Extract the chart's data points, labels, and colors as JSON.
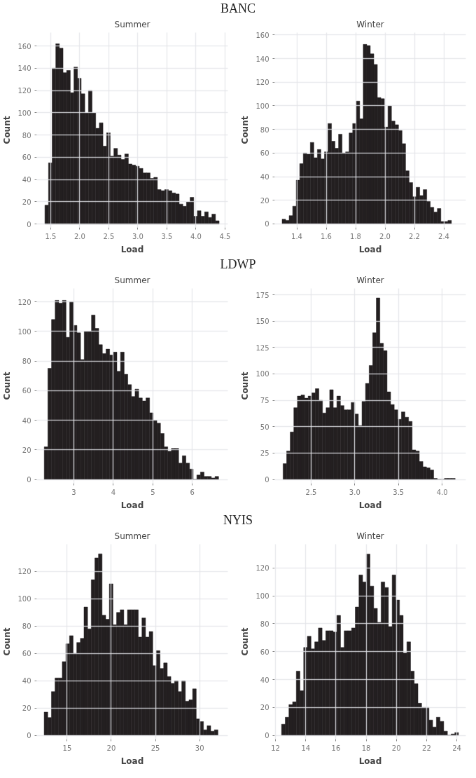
{
  "chart_data": [
    {
      "type": "histogram",
      "title": "BANC",
      "subtitle": "Summer",
      "xlabel": "Load",
      "ylabel": "Count",
      "color": "#231f20",
      "grid": true,
      "xlim": [
        1.26,
        4.55
      ],
      "ylim": [
        -3,
        172
      ],
      "xticks": [
        {
          "value": 1.5,
          "label": "1.5"
        },
        {
          "value": 2,
          "label": "2.0"
        },
        {
          "value": 2.5,
          "label": "2.5"
        },
        {
          "value": 3,
          "label": "3.0"
        },
        {
          "value": 3.5,
          "label": "3.5"
        },
        {
          "value": 4,
          "label": "4.0"
        },
        {
          "value": 4.5,
          "label": "4.5"
        }
      ],
      "yticks": [
        0,
        20,
        40,
        60,
        80,
        100,
        120,
        140,
        160
      ],
      "bins": [
        1.4,
        1.4625,
        1.525,
        1.5875,
        1.65,
        1.7125,
        1.775,
        1.8375,
        1.9,
        1.9625,
        2.025,
        2.0875,
        2.15,
        2.2125,
        2.275,
        2.3375,
        2.4,
        2.4625,
        2.525,
        2.5875,
        2.65,
        2.7125,
        2.775,
        2.8375,
        2.9,
        2.9625,
        3.025,
        3.0875,
        3.15,
        3.2125,
        3.275,
        3.3375,
        3.4,
        3.4625,
        3.525,
        3.5875,
        3.65,
        3.7125,
        3.775,
        3.8375,
        3.9,
        3.9625,
        4.025,
        4.0875,
        4.15,
        4.2125,
        4.275,
        4.3375,
        4.4
      ],
      "values": [
        17,
        55,
        140,
        162,
        158,
        136,
        138,
        118,
        141,
        131,
        117,
        100,
        120,
        100,
        86,
        91,
        70,
        82,
        61,
        68,
        62,
        58,
        63,
        54,
        53,
        52,
        50,
        46,
        46,
        41,
        42,
        31,
        30,
        31,
        30,
        28,
        27,
        18,
        16,
        20,
        24,
        7,
        12,
        7,
        11,
        6,
        9,
        3
      ]
    },
    {
      "type": "histogram",
      "subtitle": "Winter",
      "xlabel": "Load",
      "ylabel": "Count",
      "color": "#231f20",
      "grid": true,
      "xlim": [
        1.25,
        2.55
      ],
      "ylim": [
        -3,
        162
      ],
      "xticks": [
        {
          "value": 1.4,
          "label": "1.4"
        },
        {
          "value": 1.6,
          "label": "1.6"
        },
        {
          "value": 1.8,
          "label": "1.8"
        },
        {
          "value": 2.0,
          "label": "2.0"
        },
        {
          "value": 2.2,
          "label": "2.2"
        },
        {
          "value": 2.4,
          "label": "2.4"
        }
      ],
      "yticks": [
        0,
        20,
        40,
        60,
        80,
        100,
        120,
        140,
        160
      ],
      "bins": [
        1.3,
        1.324,
        1.348,
        1.372,
        1.396,
        1.42,
        1.444,
        1.468,
        1.492,
        1.516,
        1.54,
        1.564,
        1.588,
        1.612,
        1.636,
        1.66,
        1.684,
        1.708,
        1.732,
        1.756,
        1.78,
        1.804,
        1.828,
        1.852,
        1.876,
        1.9,
        1.924,
        1.948,
        1.972,
        1.996,
        2.02,
        2.044,
        2.068,
        2.092,
        2.116,
        2.14,
        2.164,
        2.188,
        2.212,
        2.236,
        2.26,
        2.284,
        2.308,
        2.332,
        2.356,
        2.38,
        2.404,
        2.428,
        2.452
      ],
      "values": [
        4,
        3,
        7,
        15,
        37,
        51,
        60,
        59,
        69,
        56,
        63,
        55,
        61,
        85,
        70,
        64,
        76,
        60,
        61,
        77,
        85,
        104,
        89,
        152,
        151,
        144,
        135,
        107,
        106,
        82,
        100,
        87,
        84,
        79,
        68,
        45,
        35,
        23,
        31,
        24,
        29,
        19,
        14,
        10,
        13,
        2,
        2,
        3
      ]
    },
    {
      "type": "histogram",
      "title": "LDWP",
      "subtitle": "Summer",
      "xlabel": "Load",
      "ylabel": "Count",
      "color": "#231f20",
      "grid": true,
      "xlim": [
        2.06,
        6.9
      ],
      "ylim": [
        -2.6,
        129
      ],
      "xticks": [
        3,
        4,
        5,
        6
      ],
      "yticks": [
        0,
        20,
        40,
        60,
        80,
        100,
        120
      ],
      "bins": [
        2.25,
        2.342,
        2.434,
        2.526,
        2.618,
        2.71,
        2.802,
        2.894,
        2.986,
        3.078,
        3.17,
        3.262,
        3.354,
        3.446,
        3.538,
        3.63,
        3.722,
        3.814,
        3.906,
        3.998,
        4.09,
        4.182,
        4.274,
        4.366,
        4.458,
        4.55,
        4.642,
        4.734,
        4.826,
        4.918,
        5.01,
        5.102,
        5.194,
        5.286,
        5.378,
        5.47,
        5.562,
        5.654,
        5.746,
        5.838,
        5.93,
        6.022,
        6.114,
        6.206,
        6.298,
        6.39,
        6.482,
        6.574,
        6.666
      ],
      "values": [
        22,
        75,
        108,
        121,
        119,
        121,
        96,
        120,
        104,
        99,
        81,
        100,
        100,
        111,
        102,
        91,
        85,
        88,
        84,
        86,
        73,
        86,
        71,
        64,
        56,
        61,
        55,
        53,
        55,
        45,
        40,
        38,
        31,
        22,
        19,
        21,
        21,
        11,
        16,
        11,
        7,
        0,
        3,
        5,
        2,
        2,
        1,
        2
      ]
    },
    {
      "type": "histogram",
      "subtitle": "Winter",
      "xlabel": "Load",
      "ylabel": "Count",
      "color": "#231f20",
      "grid": true,
      "xlim": [
        2.085,
        4.27
      ],
      "ylim": [
        -3.6,
        181
      ],
      "xticks": [
        {
          "value": 2.5,
          "label": "2.5"
        },
        {
          "value": 3.0,
          "label": "3.0"
        },
        {
          "value": 3.5,
          "label": "3.5"
        },
        {
          "value": 4.0,
          "label": "4.0"
        }
      ],
      "yticks": [
        0,
        25,
        50,
        75,
        100,
        125,
        150,
        175
      ],
      "bins": [
        2.18,
        2.221,
        2.262,
        2.303,
        2.344,
        2.385,
        2.426,
        2.467,
        2.508,
        2.549,
        2.59,
        2.631,
        2.672,
        2.713,
        2.754,
        2.795,
        2.836,
        2.877,
        2.918,
        2.959,
        3.0,
        3.041,
        3.082,
        3.123,
        3.164,
        3.205,
        3.246,
        3.287,
        3.328,
        3.369,
        3.41,
        3.451,
        3.492,
        3.533,
        3.574,
        3.615,
        3.656,
        3.697,
        3.738,
        3.779,
        3.82,
        3.861,
        3.902,
        3.943,
        3.984,
        4.025,
        4.066,
        4.107,
        4.148
      ],
      "values": [
        15,
        27,
        45,
        68,
        79,
        80,
        77,
        79,
        82,
        86,
        75,
        63,
        68,
        85,
        68,
        79,
        70,
        66,
        66,
        73,
        62,
        51,
        74,
        91,
        108,
        139,
        172,
        129,
        122,
        83,
        71,
        66,
        57,
        64,
        59,
        55,
        28,
        27,
        17,
        12,
        11,
        9,
        1,
        0,
        0,
        1,
        1,
        1
      ]
    },
    {
      "type": "histogram",
      "title": "NYIS",
      "subtitle": "Summer",
      "xlabel": "Load",
      "ylabel": "Count",
      "color": "#231f20",
      "grid": true,
      "xlim": [
        11.56,
        33.2
      ],
      "ylim": [
        -2.8,
        140
      ],
      "xticks": [
        15,
        20,
        25,
        30
      ],
      "yticks": [
        0,
        20,
        40,
        60,
        80,
        100,
        120
      ],
      "bins": [
        12.4,
        12.81,
        13.22,
        13.63,
        14.04,
        14.45,
        14.86,
        15.27,
        15.68,
        16.09,
        16.5,
        16.91,
        17.32,
        17.73,
        18.14,
        18.55,
        18.96,
        19.37,
        19.78,
        20.19,
        20.6,
        21.01,
        21.42,
        21.83,
        22.24,
        22.65,
        23.06,
        23.47,
        23.88,
        24.29,
        24.7,
        25.11,
        25.52,
        25.93,
        26.34,
        26.75,
        27.16,
        27.57,
        27.98,
        28.39,
        28.8,
        29.21,
        29.62,
        30.03,
        30.44,
        30.85,
        31.26,
        31.67,
        32.08
      ],
      "values": [
        17,
        13,
        32,
        42,
        42,
        54,
        67,
        73,
        60,
        68,
        71,
        94,
        78,
        114,
        130,
        133,
        88,
        85,
        111,
        81,
        90,
        92,
        81,
        92,
        92,
        92,
        72,
        86,
        72,
        76,
        51,
        62,
        49,
        53,
        43,
        38,
        40,
        32,
        40,
        25,
        26,
        34,
        12,
        10,
        4,
        7,
        3,
        4
      ]
    },
    {
      "type": "histogram",
      "subtitle": "Winter",
      "xlabel": "Load",
      "ylabel": "Count",
      "color": "#231f20",
      "grid": true,
      "xlim": [
        11.95,
        24.6
      ],
      "ylim": [
        -2.7,
        137
      ],
      "xticks": [
        12,
        14,
        16,
        18,
        20,
        22,
        24
      ],
      "yticks": [
        0,
        20,
        40,
        60,
        80,
        100,
        120
      ],
      "bins": [
        12.4,
        12.644,
        12.888,
        13.132,
        13.376,
        13.62,
        13.864,
        14.108,
        14.352,
        14.596,
        14.84,
        15.084,
        15.328,
        15.572,
        15.816,
        16.06,
        16.304,
        16.548,
        16.792,
        17.036,
        17.28,
        17.524,
        17.768,
        18.012,
        18.256,
        18.5,
        18.744,
        18.988,
        19.232,
        19.476,
        19.72,
        19.964,
        20.208,
        20.452,
        20.696,
        20.94,
        21.184,
        21.428,
        21.672,
        21.916,
        22.16,
        22.404,
        22.648,
        22.892,
        23.136,
        23.38,
        23.624,
        23.868,
        24.112
      ],
      "values": [
        8,
        13,
        22,
        24,
        46,
        32,
        63,
        71,
        62,
        67,
        77,
        68,
        75,
        75,
        74,
        86,
        63,
        75,
        75,
        77,
        92,
        115,
        110,
        130,
        107,
        91,
        81,
        110,
        106,
        78,
        115,
        97,
        86,
        59,
        67,
        46,
        37,
        23,
        20,
        20,
        11,
        6,
        13,
        10,
        3,
        0,
        1,
        2
      ]
    }
  ]
}
